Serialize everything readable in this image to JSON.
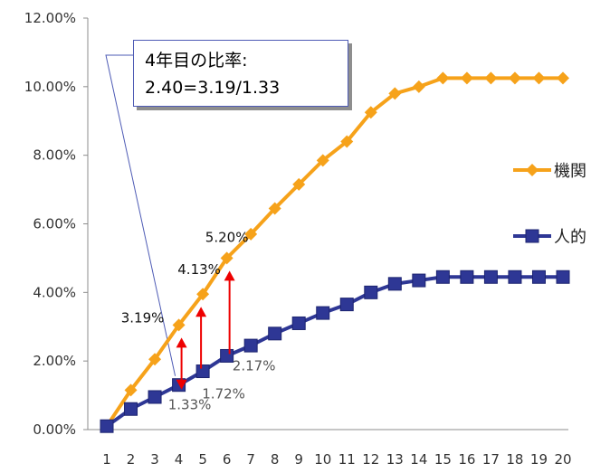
{
  "chart_data": {
    "type": "line",
    "title": "",
    "xlabel": "",
    "ylabel": "",
    "categories": [
      "1",
      "2",
      "3",
      "4",
      "5",
      "6",
      "7",
      "8",
      "9",
      "10",
      "11",
      "12",
      "13",
      "14",
      "15",
      "16",
      "17",
      "18",
      "19",
      "20"
    ],
    "ylim": [
      0,
      12
    ],
    "y_ticks": [
      "0.00%",
      "2.00%",
      "4.00%",
      "6.00%",
      "8.00%",
      "10.00%",
      "12.00%"
    ],
    "grid": false,
    "legend": "right",
    "series": [
      {
        "name": "機関",
        "color": "#f6a21a",
        "marker": "diamond",
        "values": [
          0.1,
          1.15,
          2.05,
          3.05,
          3.95,
          5.0,
          5.7,
          6.45,
          7.15,
          7.85,
          8.4,
          9.25,
          9.8,
          10.0,
          10.25,
          10.25,
          10.25,
          10.25,
          10.25,
          10.25
        ]
      },
      {
        "name": "人的",
        "color": "#2e3795",
        "marker": "square",
        "values": [
          0.1,
          0.6,
          0.95,
          1.3,
          1.7,
          2.15,
          2.45,
          2.8,
          3.1,
          3.4,
          3.65,
          4.0,
          4.25,
          4.35,
          4.45,
          4.45,
          4.45,
          4.45,
          4.45,
          4.45
        ]
      }
    ],
    "data_labels": [
      {
        "text": "5.20%",
        "series": 0,
        "index": 5
      },
      {
        "text": "4.13%",
        "series": 0,
        "index": 4
      },
      {
        "text": "3.19%",
        "series": 0,
        "index": 3
      },
      {
        "text": "2.17%",
        "series": 1,
        "index": 5
      },
      {
        "text": "1.72%",
        "series": 1,
        "index": 4
      },
      {
        "text": "1.33%",
        "series": 1,
        "index": 3
      }
    ],
    "annotation": {
      "line1": "4年目の比率:",
      "line2": "2.40=3.19/1.33"
    },
    "arrow_color": "#ee0000"
  }
}
